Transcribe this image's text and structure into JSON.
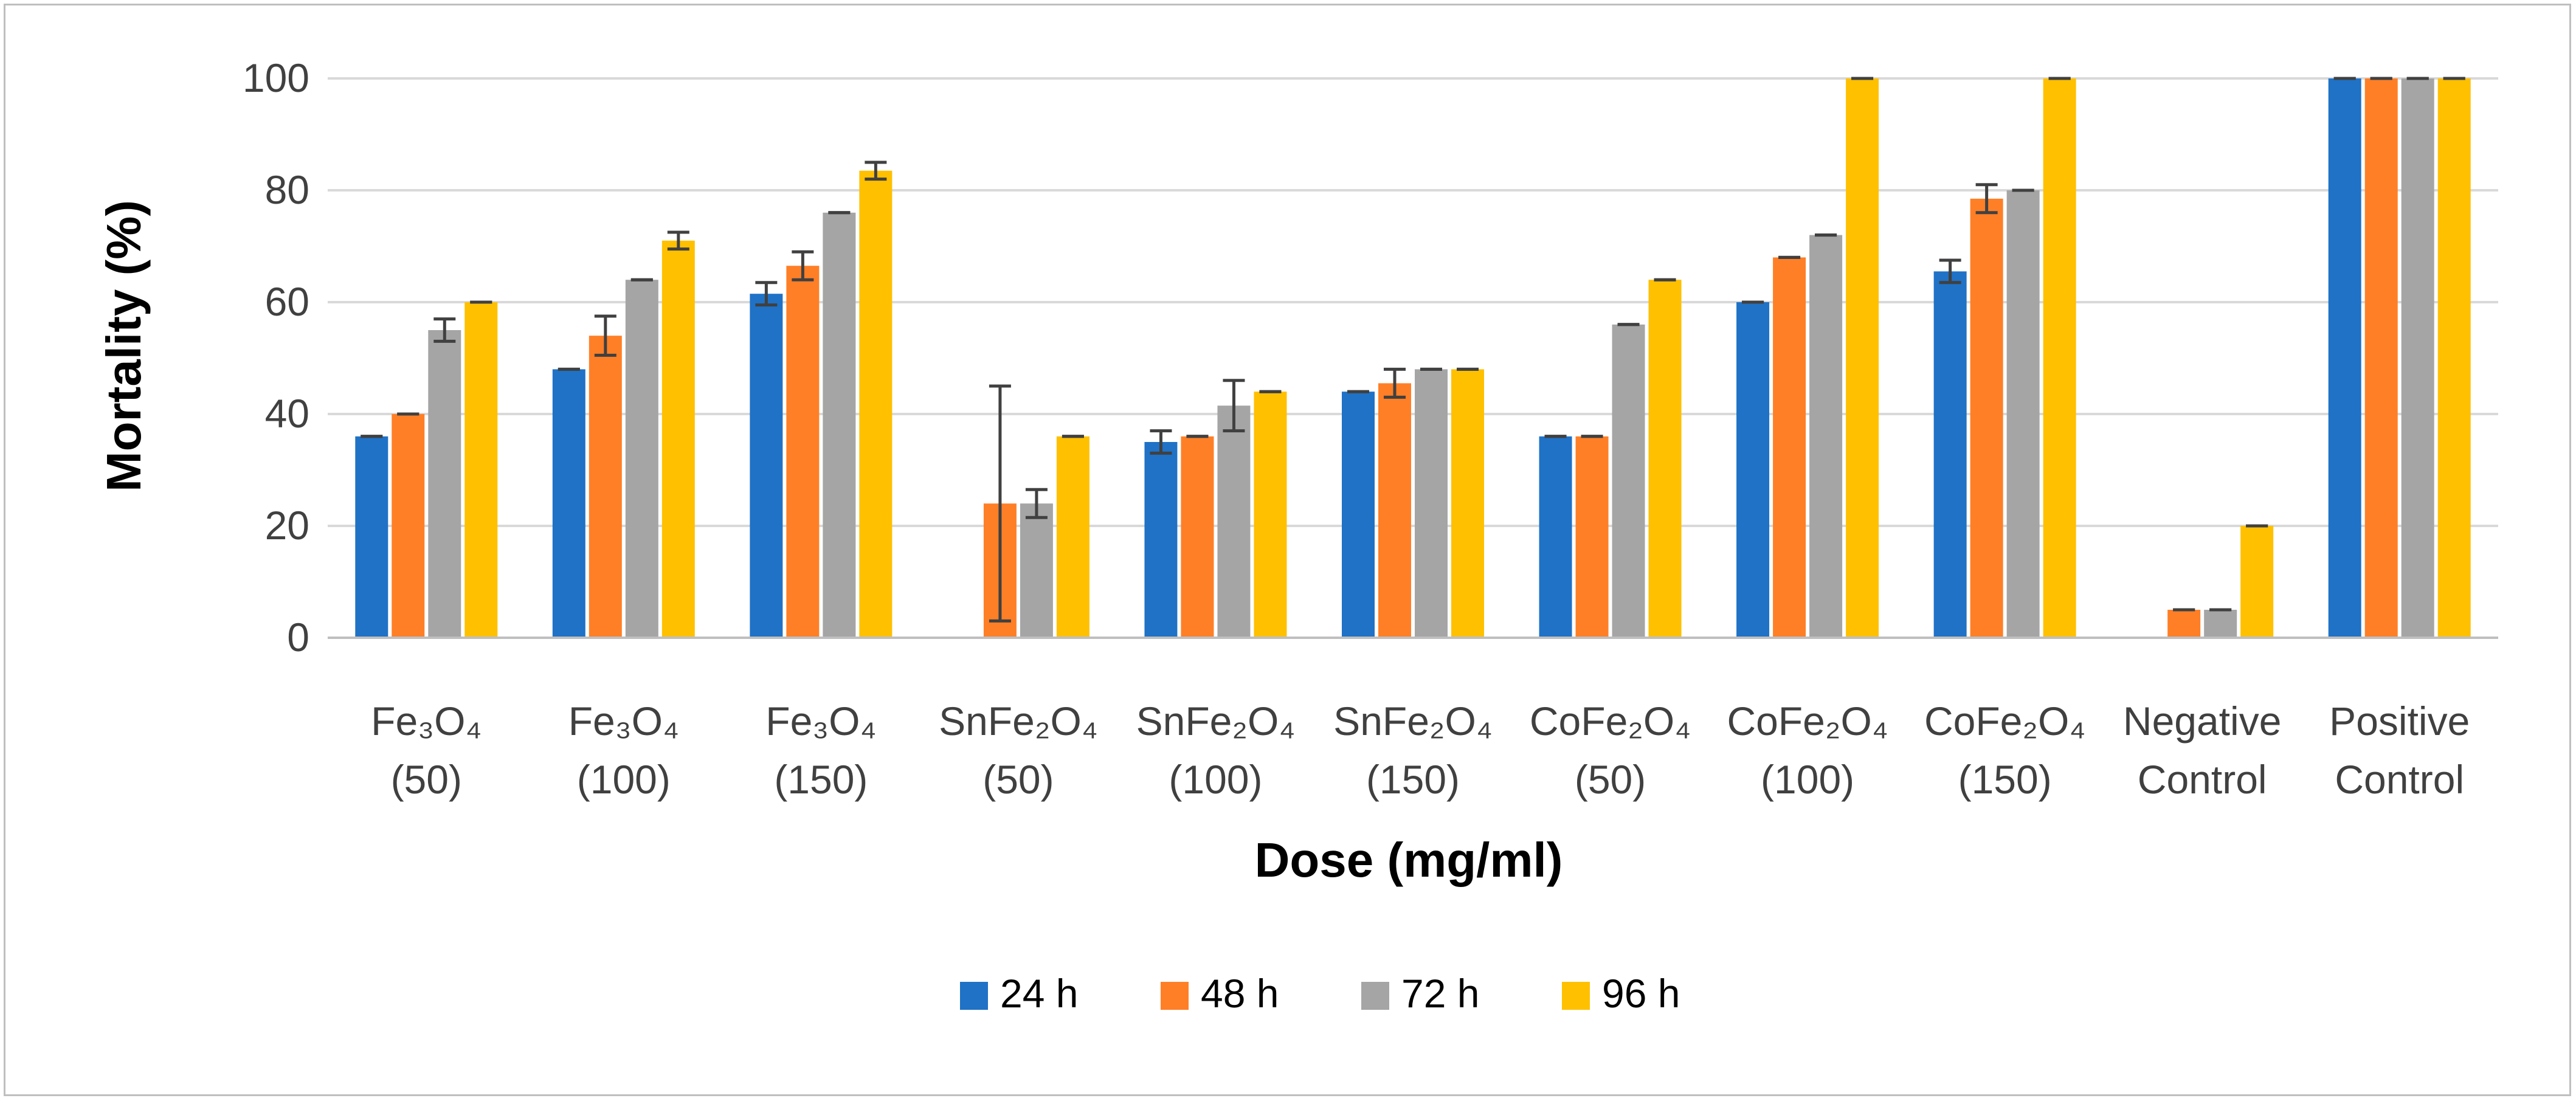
{
  "chart_data": {
    "type": "bar",
    "title": "",
    "xlabel": "Dose (mg/ml)",
    "ylabel": "Mortality (%)",
    "ylim": [
      0,
      100
    ],
    "yticks": [
      0,
      20,
      40,
      60,
      80,
      100
    ],
    "grid": true,
    "legend_position": "bottom",
    "categories": [
      [
        "Fe₃O₄",
        "(50)"
      ],
      [
        "Fe₃O₄",
        "(100)"
      ],
      [
        "Fe₃O₄",
        "(150)"
      ],
      [
        "SnFe₂O₄",
        "(50)"
      ],
      [
        "SnFe₂O₄",
        "(100)"
      ],
      [
        "SnFe₂O₄",
        "(150)"
      ],
      [
        "CoFe₂O₄",
        "(50)"
      ],
      [
        "CoFe₂O₄",
        "(100)"
      ],
      [
        "CoFe₂O₄",
        "(150)"
      ],
      [
        "Negative",
        "Control"
      ],
      [
        "Positive",
        "Control"
      ]
    ],
    "series": [
      {
        "name": "24 h",
        "color": "#1f72c6",
        "values": [
          36,
          48,
          61.5,
          0,
          35,
          44,
          36,
          60,
          65.5,
          0,
          100
        ],
        "errors": [
          0,
          0,
          2,
          0,
          2,
          0,
          0,
          0,
          2,
          0,
          0
        ]
      },
      {
        "name": "48 h",
        "color": "#ff7f27",
        "values": [
          40,
          54,
          66.5,
          24,
          36,
          45.5,
          36,
          68,
          78.5,
          5,
          100
        ],
        "errors": [
          0,
          3.5,
          2.5,
          21,
          0,
          2.5,
          0,
          0,
          2.5,
          0,
          0
        ]
      },
      {
        "name": "72 h",
        "color": "#a5a5a5",
        "values": [
          55,
          64,
          76,
          24,
          41.5,
          48,
          56,
          72,
          80,
          5,
          100
        ],
        "errors": [
          2,
          0,
          0,
          2.5,
          4.5,
          0,
          0,
          0,
          0,
          0,
          0
        ]
      },
      {
        "name": "96 h",
        "color": "#ffc000",
        "values": [
          60,
          71,
          83.5,
          36,
          44,
          48,
          64,
          100,
          100,
          20,
          100
        ],
        "errors": [
          0,
          1.5,
          1.5,
          0,
          0,
          0,
          0,
          0,
          0,
          0,
          0
        ]
      }
    ]
  }
}
